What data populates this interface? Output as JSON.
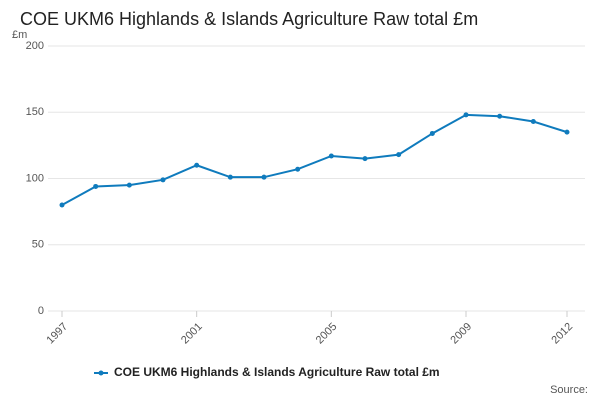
{
  "chart_data": {
    "type": "line",
    "title": "COE UKM6 Highlands & Islands Agriculture Raw total £m",
    "y_label": "£m",
    "source": "Source:",
    "x": [
      1997,
      1998,
      1999,
      2000,
      2001,
      2002,
      2003,
      2004,
      2005,
      2006,
      2007,
      2008,
      2009,
      2010,
      2011,
      2012
    ],
    "series": [
      {
        "name": "COE UKM6 Highlands & Islands Agriculture Raw total £m",
        "color": "#0f7bbd",
        "values": [
          80,
          94,
          95,
          99,
          110,
          101,
          101,
          107,
          117,
          115,
          118,
          134,
          148,
          147,
          143,
          135
        ]
      }
    ],
    "xlim": [
      1997,
      2012
    ],
    "xticks": [
      1997,
      2001,
      2005,
      2009,
      2012
    ],
    "ylim": [
      0,
      200
    ],
    "yticks": [
      0,
      50,
      100,
      150,
      200
    ],
    "grid": true,
    "legend": "bottom"
  }
}
